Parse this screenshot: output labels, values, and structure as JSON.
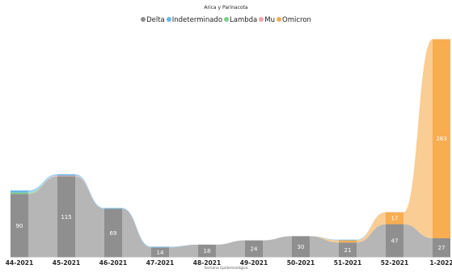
{
  "chart_data": {
    "type": "bar",
    "subtype": "stacked ribbon",
    "title": "Arica y Parinacota",
    "xlabel": "Semana Epidemiológica",
    "ylabel": "",
    "legend_position": "top-center",
    "categories": [
      "44-2021",
      "45-2021",
      "46-2021",
      "47-2021",
      "48-2021",
      "49-2021",
      "50-2021",
      "51-2021",
      "52-2021",
      "1-2022"
    ],
    "series": [
      {
        "name": "Delta",
        "color": "#8f8f8f",
        "values": [
          90,
          115,
          69,
          14,
          18,
          24,
          30,
          21,
          47,
          27
        ],
        "labels": [
          "90",
          "115",
          "69",
          "14",
          "18",
          "24",
          "30",
          "21",
          "47",
          "27"
        ]
      },
      {
        "name": "Indeterminado",
        "color": "#6ab7e8",
        "values": [
          3,
          2,
          1,
          1,
          0,
          0,
          0,
          1,
          0,
          0
        ],
        "labels": [
          "",
          "",
          "",
          "",
          "",
          "",
          "",
          "",
          "",
          ""
        ]
      },
      {
        "name": "Lambda",
        "color": "#7fcc8a",
        "values": [
          2,
          0,
          0,
          0,
          0,
          0,
          0,
          0,
          0,
          0
        ],
        "labels": [
          "",
          "",
          "",
          "",
          "",
          "",
          "",
          "",
          "",
          ""
        ]
      },
      {
        "name": "Mu",
        "color": "#f0a3a3",
        "values": [
          0,
          1,
          0,
          0,
          0,
          0,
          0,
          0,
          0,
          0
        ],
        "labels": [
          "",
          "",
          "",
          "",
          "",
          "",
          "",
          "",
          "",
          ""
        ]
      },
      {
        "name": "Omicron",
        "color": "#f7ad50",
        "values": [
          0,
          0,
          0,
          0,
          0,
          0,
          0,
          3,
          17,
          283
        ],
        "labels": [
          "",
          "",
          "",
          "",
          "",
          "",
          "",
          "",
          "17",
          "283"
        ]
      }
    ],
    "stack_order": [
      "Delta",
      "Omicron",
      "Mu",
      "Lambda",
      "Indeterminado"
    ],
    "grid": false
  }
}
